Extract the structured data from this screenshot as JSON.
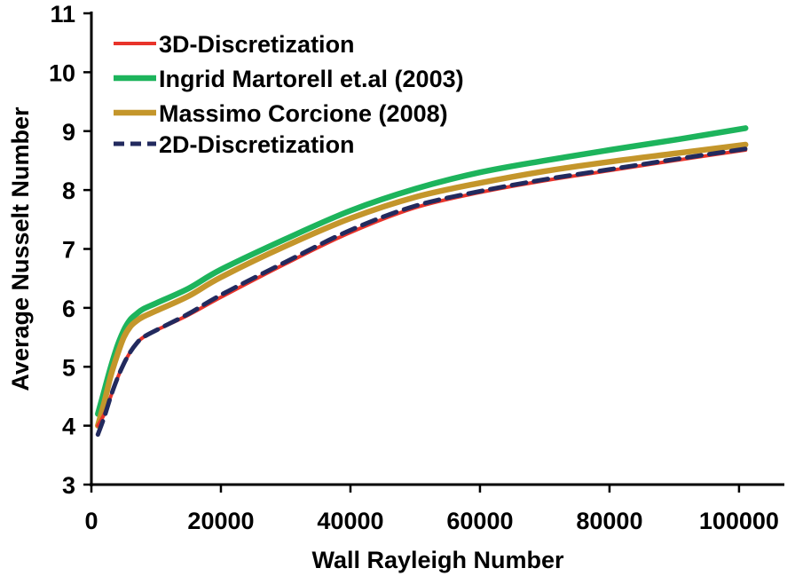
{
  "chart_data": {
    "type": "line",
    "title": "",
    "xlabel": "Wall Rayleigh Number",
    "ylabel": "Average Nusselt Number",
    "xlim": [
      0,
      107000
    ],
    "ylim": [
      3,
      11
    ],
    "xticks": [
      0,
      20000,
      40000,
      60000,
      80000,
      100000
    ],
    "xtick_labels": [
      "0",
      "20000",
      "40000",
      "60000",
      "80000",
      "100000"
    ],
    "yticks": [
      3,
      4,
      5,
      6,
      7,
      8,
      9,
      10,
      11
    ],
    "ytick_labels": [
      "3",
      "4",
      "5",
      "6",
      "7",
      "8",
      "9",
      "10",
      "11"
    ],
    "grid": false,
    "legend_position": "top-left",
    "series": [
      {
        "name": "3D-Discretization",
        "color": "#e8332a",
        "style": "solid",
        "x": [
          1000,
          2000,
          3000,
          4000,
          5000,
          6000,
          7000,
          8000,
          10000,
          15000,
          20000,
          30000,
          40000,
          50000,
          60000,
          70000,
          80000,
          90000,
          101000
        ],
        "y": [
          4.0,
          4.2,
          4.5,
          4.8,
          5.05,
          5.25,
          5.4,
          5.5,
          5.62,
          5.88,
          6.18,
          6.75,
          7.28,
          7.7,
          7.96,
          8.16,
          8.33,
          8.5,
          8.68
        ]
      },
      {
        "name": "Ingrid Martorell et.al (2003)",
        "color": "#1db45c",
        "style": "solid",
        "x": [
          1000,
          2000,
          3000,
          4000,
          5000,
          6000,
          7000,
          8000,
          10000,
          15000,
          20000,
          30000,
          40000,
          50000,
          60000,
          70000,
          80000,
          90000,
          101000
        ],
        "y": [
          4.2,
          4.6,
          5.0,
          5.35,
          5.62,
          5.8,
          5.9,
          5.98,
          6.08,
          6.33,
          6.65,
          7.17,
          7.65,
          8.02,
          8.3,
          8.5,
          8.68,
          8.85,
          9.05
        ]
      },
      {
        "name": "Massimo Corcione (2008)",
        "color": "#c4962b",
        "style": "solid",
        "x": [
          1000,
          2000,
          3000,
          4000,
          5000,
          6000,
          7000,
          8000,
          10000,
          15000,
          20000,
          30000,
          40000,
          50000,
          60000,
          70000,
          80000,
          90000,
          101000
        ],
        "y": [
          4.0,
          4.4,
          4.85,
          5.2,
          5.5,
          5.68,
          5.78,
          5.85,
          5.95,
          6.2,
          6.52,
          7.05,
          7.52,
          7.88,
          8.12,
          8.32,
          8.48,
          8.62,
          8.77
        ]
      },
      {
        "name": "2D-Discretization",
        "color": "#222a5e",
        "style": "dashed",
        "x": [
          1000,
          2000,
          3000,
          4000,
          5000,
          6000,
          7000,
          8000,
          10000,
          15000,
          20000,
          30000,
          40000,
          50000,
          60000,
          70000,
          80000,
          90000,
          101000
        ],
        "y": [
          3.85,
          4.15,
          4.5,
          4.8,
          5.05,
          5.25,
          5.4,
          5.5,
          5.62,
          5.9,
          6.22,
          6.78,
          7.32,
          7.73,
          7.98,
          8.18,
          8.35,
          8.52,
          8.7
        ]
      }
    ]
  }
}
